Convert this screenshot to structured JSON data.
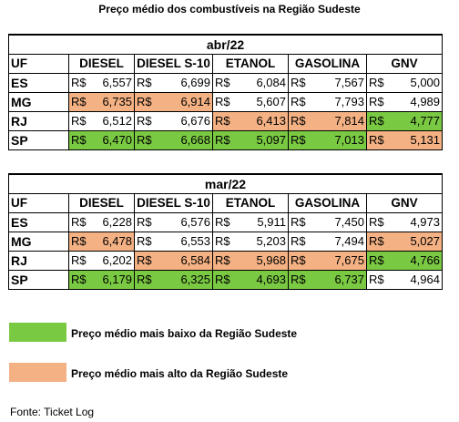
{
  "title": "Preço médio dos combustíveis na Região Sudeste",
  "columns": [
    "UF",
    "DIESEL",
    "DIESEL S-10",
    "ETANOL",
    "GASOLINA",
    "GNV"
  ],
  "currency": "R$",
  "colors": {
    "low": "#7ac943",
    "high": "#f4b183"
  },
  "tables": [
    {
      "period": "abr/22",
      "rows": [
        {
          "uf": "ES",
          "cells": [
            {
              "v": "6,557",
              "h": ""
            },
            {
              "v": "6,699",
              "h": ""
            },
            {
              "v": "6,084",
              "h": ""
            },
            {
              "v": "7,567",
              "h": ""
            },
            {
              "v": "5,000",
              "h": ""
            }
          ]
        },
        {
          "uf": "MG",
          "cells": [
            {
              "v": "6,735",
              "h": "high"
            },
            {
              "v": "6,914",
              "h": "high"
            },
            {
              "v": "5,607",
              "h": ""
            },
            {
              "v": "7,793",
              "h": ""
            },
            {
              "v": "4,989",
              "h": ""
            }
          ]
        },
        {
          "uf": "RJ",
          "cells": [
            {
              "v": "6,512",
              "h": ""
            },
            {
              "v": "6,676",
              "h": ""
            },
            {
              "v": "6,413",
              "h": "high"
            },
            {
              "v": "7,814",
              "h": "high"
            },
            {
              "v": "4,777",
              "h": "low"
            }
          ]
        },
        {
          "uf": "SP",
          "cells": [
            {
              "v": "6,470",
              "h": "low"
            },
            {
              "v": "6,668",
              "h": "low"
            },
            {
              "v": "5,097",
              "h": "low"
            },
            {
              "v": "7,013",
              "h": "low"
            },
            {
              "v": "5,131",
              "h": "high"
            }
          ]
        }
      ]
    },
    {
      "period": "mar/22",
      "rows": [
        {
          "uf": "ES",
          "cells": [
            {
              "v": "6,228",
              "h": ""
            },
            {
              "v": "6,576",
              "h": ""
            },
            {
              "v": "5,911",
              "h": ""
            },
            {
              "v": "7,450",
              "h": ""
            },
            {
              "v": "4,973",
              "h": ""
            }
          ]
        },
        {
          "uf": "MG",
          "cells": [
            {
              "v": "6,478",
              "h": "high"
            },
            {
              "v": "6,553",
              "h": ""
            },
            {
              "v": "5,203",
              "h": ""
            },
            {
              "v": "7,494",
              "h": ""
            },
            {
              "v": "5,027",
              "h": "high"
            }
          ]
        },
        {
          "uf": "RJ",
          "cells": [
            {
              "v": "6,202",
              "h": ""
            },
            {
              "v": "6,584",
              "h": "high"
            },
            {
              "v": "5,968",
              "h": "high"
            },
            {
              "v": "7,675",
              "h": "high"
            },
            {
              "v": "4,766",
              "h": "low"
            }
          ]
        },
        {
          "uf": "SP",
          "cells": [
            {
              "v": "6,179",
              "h": "low"
            },
            {
              "v": "6,325",
              "h": "low"
            },
            {
              "v": "4,693",
              "h": "low"
            },
            {
              "v": "6,737",
              "h": "low"
            },
            {
              "v": "4,964",
              "h": ""
            }
          ]
        }
      ]
    }
  ],
  "legend": [
    {
      "label": "Preço médio mais baixo da Região Sudeste",
      "kind": "low"
    },
    {
      "label": "Preço médio mais alto da Região Sudeste",
      "kind": "high"
    }
  ],
  "source": "Fonte: Ticket Log"
}
